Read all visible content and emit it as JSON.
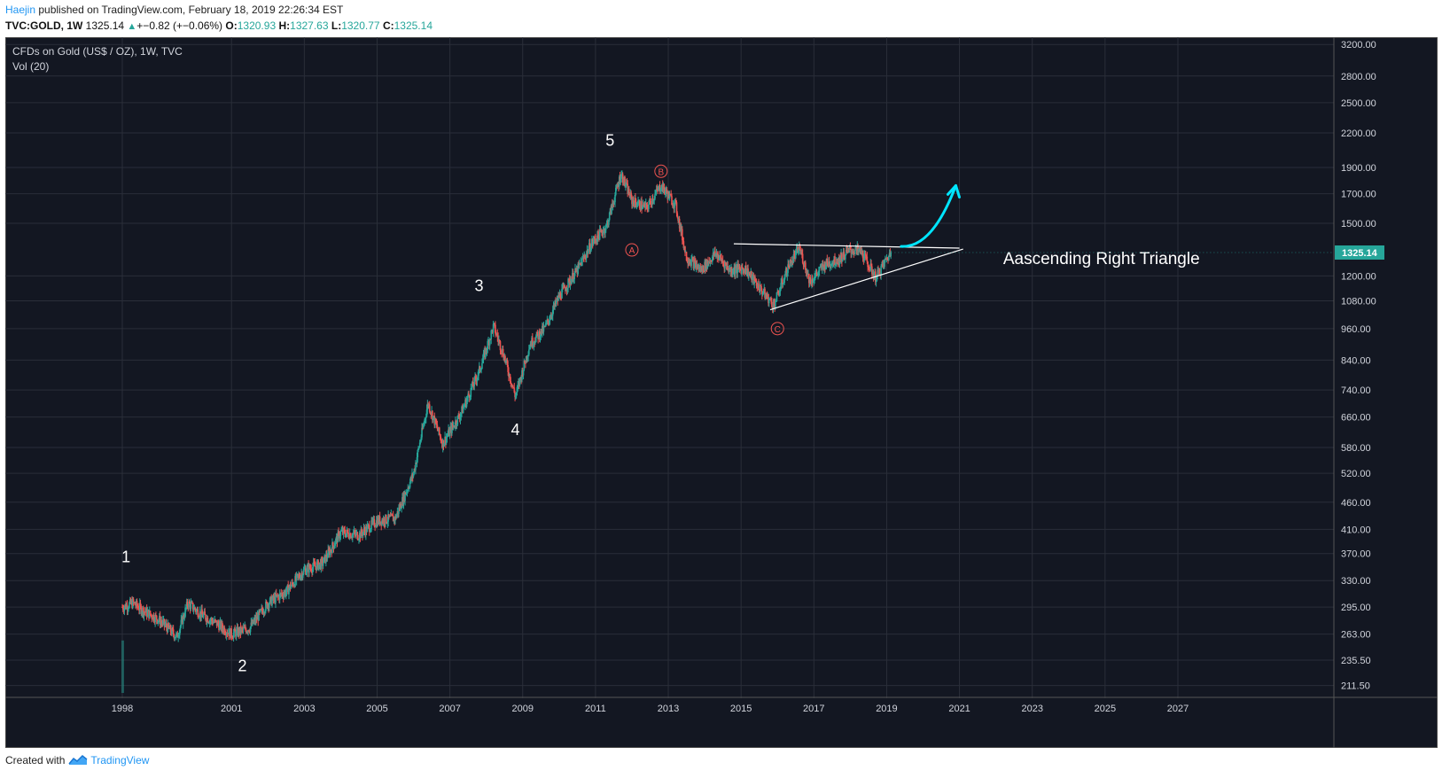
{
  "header": {
    "author": "Haejin",
    "published_text": " published on TradingView.com, February 18, 2019 22:26:34 EST",
    "symbol": "TVC:GOLD, 1W",
    "last": "1325.14",
    "change": "+−0.82 (+−0.06%)",
    "open_label": "O:",
    "open": "1320.93",
    "high_label": "H:",
    "high": "1327.63",
    "low_label": "L:",
    "low": "1320.77",
    "close_label": "C:",
    "close": "1325.14"
  },
  "legend": {
    "title": "CFDs on Gold (US$ / OZ), 1W, TVC",
    "indicator": "Vol (20)"
  },
  "footer": {
    "created_with": "Created with",
    "brand": "TradingView"
  },
  "colors": {
    "background": "#131722",
    "grid": "#2a2e39",
    "axis_text": "#d1d4dc",
    "up": "#26a69a",
    "down": "#ef5350",
    "accent": "#00e5ff",
    "wave_label_red": "#ef5350",
    "annotation": "#ffffff"
  },
  "chart_data": {
    "type": "candlestick",
    "title": "CFDs on Gold (US$ / OZ), 1W, TVC",
    "y_scale": "log",
    "ylim": [
      205,
      3300
    ],
    "xlim": [
      1998,
      2034.5
    ],
    "y_ticks": [
      "3200.00",
      "2800.00",
      "2500.00",
      "2200.00",
      "1900.00",
      "1700.00",
      "1500.00",
      "1325.14",
      "1200.00",
      "1080.00",
      "960.00",
      "840.00",
      "740.00",
      "660.00",
      "580.00",
      "520.00",
      "460.00",
      "410.00",
      "370.00",
      "330.00",
      "295.00",
      "263.00",
      "235.50",
      "211.50"
    ],
    "x_ticks": [
      "1998",
      "2001",
      "2003",
      "2005",
      "2007",
      "2009",
      "2011",
      "2013",
      "2015",
      "2017",
      "2019",
      "2021",
      "2023",
      "2025",
      "2027"
    ],
    "last_price_label": "1325.14",
    "price_path": [
      [
        1998.0,
        295
      ],
      [
        1998.3,
        300
      ],
      [
        1998.6,
        290
      ],
      [
        1999.0,
        280
      ],
      [
        1999.5,
        260
      ],
      [
        1999.8,
        300
      ],
      [
        2000.2,
        285
      ],
      [
        2000.6,
        275
      ],
      [
        2001.0,
        263
      ],
      [
        2001.5,
        270
      ],
      [
        2002.0,
        300
      ],
      [
        2002.5,
        315
      ],
      [
        2003.0,
        345
      ],
      [
        2003.5,
        355
      ],
      [
        2004.0,
        405
      ],
      [
        2004.5,
        400
      ],
      [
        2005.0,
        425
      ],
      [
        2005.5,
        430
      ],
      [
        2006.0,
        520
      ],
      [
        2006.4,
        700
      ],
      [
        2006.8,
        590
      ],
      [
        2007.3,
        670
      ],
      [
        2007.8,
        800
      ],
      [
        2008.2,
        970
      ],
      [
        2008.5,
        850
      ],
      [
        2008.8,
        720
      ],
      [
        2009.2,
        900
      ],
      [
        2009.6,
        960
      ],
      [
        2010.0,
        1100
      ],
      [
        2010.5,
        1230
      ],
      [
        2010.9,
        1380
      ],
      [
        2011.3,
        1480
      ],
      [
        2011.7,
        1850
      ],
      [
        2012.0,
        1650
      ],
      [
        2012.4,
        1600
      ],
      [
        2012.8,
        1760
      ],
      [
        2013.2,
        1620
      ],
      [
        2013.5,
        1300
      ],
      [
        2013.9,
        1230
      ],
      [
        2014.3,
        1320
      ],
      [
        2014.7,
        1230
      ],
      [
        2015.1,
        1240
      ],
      [
        2015.6,
        1120
      ],
      [
        2015.9,
        1060
      ],
      [
        2016.3,
        1250
      ],
      [
        2016.6,
        1350
      ],
      [
        2016.9,
        1170
      ],
      [
        2017.3,
        1260
      ],
      [
        2017.7,
        1290
      ],
      [
        2018.0,
        1340
      ],
      [
        2018.3,
        1330
      ],
      [
        2018.7,
        1190
      ],
      [
        2019.0,
        1290
      ],
      [
        2019.12,
        1325
      ]
    ],
    "volume": [
      {
        "x": 1998.0,
        "fraction": 0.08
      }
    ],
    "wave_labels": [
      {
        "label": "1",
        "x": 1998.1,
        "y": 365,
        "color": "white"
      },
      {
        "label": "2",
        "x": 2001.3,
        "y": 230,
        "color": "white"
      },
      {
        "label": "3",
        "x": 2007.8,
        "y": 1150,
        "color": "white"
      },
      {
        "label": "4",
        "x": 2008.8,
        "y": 625,
        "color": "white"
      },
      {
        "label": "5",
        "x": 2011.4,
        "y": 2130,
        "color": "white"
      },
      {
        "label": "A",
        "x": 2012.0,
        "y": 1340,
        "color": "red",
        "circled": true
      },
      {
        "label": "B",
        "x": 2012.8,
        "y": 1870,
        "color": "red",
        "circled": true
      },
      {
        "label": "C",
        "x": 2016.0,
        "y": 960,
        "color": "red",
        "circled": true
      }
    ],
    "trendlines": [
      {
        "name": "resistance",
        "from": [
          2014.8,
          1375
        ],
        "to": [
          2021.0,
          1350
        ]
      },
      {
        "name": "support",
        "from": [
          2015.8,
          1040
        ],
        "to": [
          2021.1,
          1345
        ]
      }
    ],
    "arrow": {
      "from": [
        2019.4,
        1360
      ],
      "to": [
        2020.9,
        1760
      ]
    },
    "annotations": [
      {
        "text": "Aascending Right Triangle",
        "x": 2022.2,
        "y": 1290
      }
    ]
  }
}
